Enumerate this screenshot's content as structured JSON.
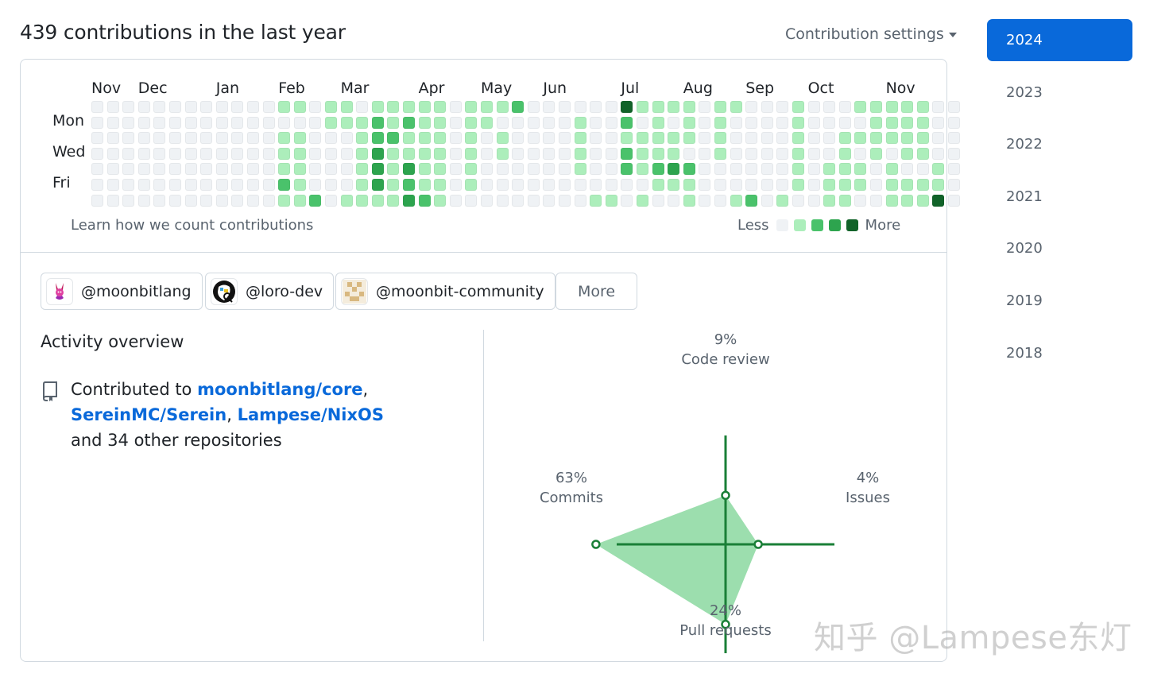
{
  "header": {
    "title": "439 contributions in the last year",
    "settings_label": "Contribution settings"
  },
  "graph": {
    "months": [
      "Nov",
      "Dec",
      "Jan",
      "Feb",
      "Mar",
      "Apr",
      "May",
      "Jun",
      "Jul",
      "Aug",
      "Sep",
      "Oct",
      "Nov"
    ],
    "month_weeks": [
      0,
      3,
      8,
      12,
      16,
      21,
      25,
      29,
      34,
      38,
      42,
      46,
      51
    ],
    "day_labels": [
      "Mon",
      "Wed",
      "Fri"
    ],
    "level_colors": [
      "#eff2f5",
      "#aceebb",
      "#4ac26b",
      "#2da44e",
      "#116329"
    ],
    "weeks": [
      "0000000",
      "0000000",
      "0000000",
      "0000000",
      "0000000",
      "0000000",
      "0000000",
      "0000000",
      "0000000",
      "0000000",
      "0000000",
      "0000000",
      "1011121",
      "1011111",
      "0000002",
      "1100000",
      "1100001",
      "0111111",
      "1223331",
      "1121111",
      "1211323",
      "1111112",
      "1111111",
      "0000000",
      "1111110",
      "1100000",
      "1011000",
      "2000000",
      "0000000",
      "0000000",
      "0000000",
      "0111100",
      "0000001",
      "0000001",
      "4212200",
      "1011101",
      "1111210",
      "1011310",
      "1110211",
      "0000000",
      "1111000",
      "1000001",
      "0000002",
      "0000000",
      "0000001",
      "1111110",
      "0000000",
      "0000111",
      "0011111",
      "1010110",
      "1111000",
      "1110111",
      "1111011",
      "1111011",
      "0000114",
      "0000000"
    ],
    "learn_label": "Learn how we count contributions",
    "legend_less": "Less",
    "legend_more": "More"
  },
  "orgs": [
    {
      "handle": "@moonbitlang"
    },
    {
      "handle": "@loro-dev"
    },
    {
      "handle": "@moonbit-community"
    }
  ],
  "more_label": "More",
  "activity": {
    "title": "Activity overview",
    "prefix": "Contributed to ",
    "repo1": "moonbitlang/core",
    "comma1": ",",
    "repo2": "SereinMC/Serein",
    "comma2": ", ",
    "repo3": "Lampese/NixOS",
    "suffix": "and 34 other repositories"
  },
  "radar": {
    "code_review_pct": "9%",
    "code_review_label": "Code review",
    "issues_pct": "4%",
    "issues_label": "Issues",
    "pull_requests_pct": "24%",
    "pull_requests_label": "Pull requests",
    "commits_pct": "63%",
    "commits_label": "Commits",
    "values": {
      "code_review": 9,
      "issues": 4,
      "pull_requests": 24,
      "commits": 63
    },
    "axis_color": "#1a7f37",
    "fill_color": "#4ac26b"
  },
  "years": [
    "2024",
    "2023",
    "2022",
    "2021",
    "2020",
    "2019",
    "2018"
  ],
  "active_year": "2024",
  "watermark": "知乎 @Lampese东灯",
  "colors": {
    "accent": "#0969da",
    "green": "#1a7f37"
  }
}
